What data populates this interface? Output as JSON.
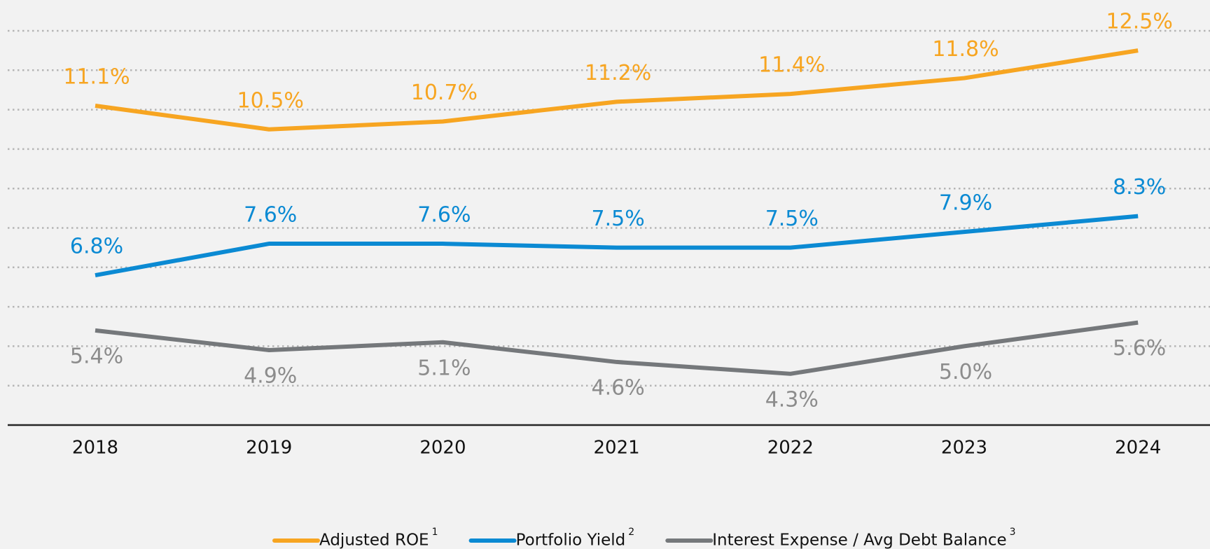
{
  "chart_data": {
    "type": "line",
    "categories": [
      "2018",
      "2019",
      "2020",
      "2021",
      "2022",
      "2023",
      "2024"
    ],
    "ylim": [
      3,
      13
    ],
    "yticks": [
      4,
      5,
      6,
      7,
      8,
      9,
      10,
      11,
      12,
      13
    ],
    "grid": true,
    "legend": "bottom",
    "series": [
      {
        "name": "Adjusted ROE",
        "footnote": "1",
        "color": "#f7a521",
        "label_color": "#f7a521",
        "label_position": "above",
        "values": [
          11.1,
          10.5,
          10.7,
          11.2,
          11.4,
          11.8,
          12.5
        ],
        "value_labels": [
          "11.1%",
          "10.5%",
          "10.7%",
          "11.2%",
          "11.4%",
          "11.8%",
          "12.5%"
        ]
      },
      {
        "name": "Portfolio Yield",
        "footnote": "2",
        "color": "#0b8ad3",
        "label_color": "#0b8ad3",
        "label_position": "above",
        "values": [
          6.8,
          7.6,
          7.6,
          7.5,
          7.5,
          7.9,
          8.3
        ],
        "value_labels": [
          "6.8%",
          "7.6%",
          "7.6%",
          "7.5%",
          "7.5%",
          "7.9%",
          "8.3%"
        ]
      },
      {
        "name": "Interest Expense / Avg Debt Balance",
        "footnote": "3",
        "color": "#75787b",
        "label_color": "#8c8c8c",
        "label_position": "below",
        "values": [
          5.4,
          4.9,
          5.1,
          4.6,
          4.3,
          5.0,
          5.6
        ],
        "value_labels": [
          "5.4%",
          "4.9%",
          "5.1%",
          "4.6%",
          "4.3%",
          "5.0%",
          "5.6%"
        ]
      }
    ]
  }
}
